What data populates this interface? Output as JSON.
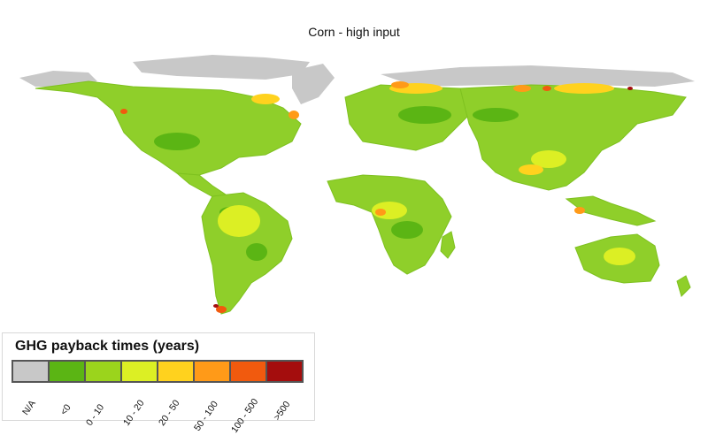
{
  "title": "Corn - high input",
  "legend": {
    "title": "GHG payback times (years)",
    "classes": [
      {
        "label": "N/A",
        "color": "#c8c8c8"
      },
      {
        "label": "<0",
        "color": "#5bb514"
      },
      {
        "label": "0 - 10",
        "color": "#9bd41c"
      },
      {
        "label": "10 - 20",
        "color": "#dcef24"
      },
      {
        "label": "20 - 50",
        "color": "#ffd21e"
      },
      {
        "label": "50 - 100",
        "color": "#ff9a18"
      },
      {
        "label": "100 - 500",
        "color": "#f15a0e"
      },
      {
        "label": ">500",
        "color": "#a40d0d"
      }
    ]
  }
}
